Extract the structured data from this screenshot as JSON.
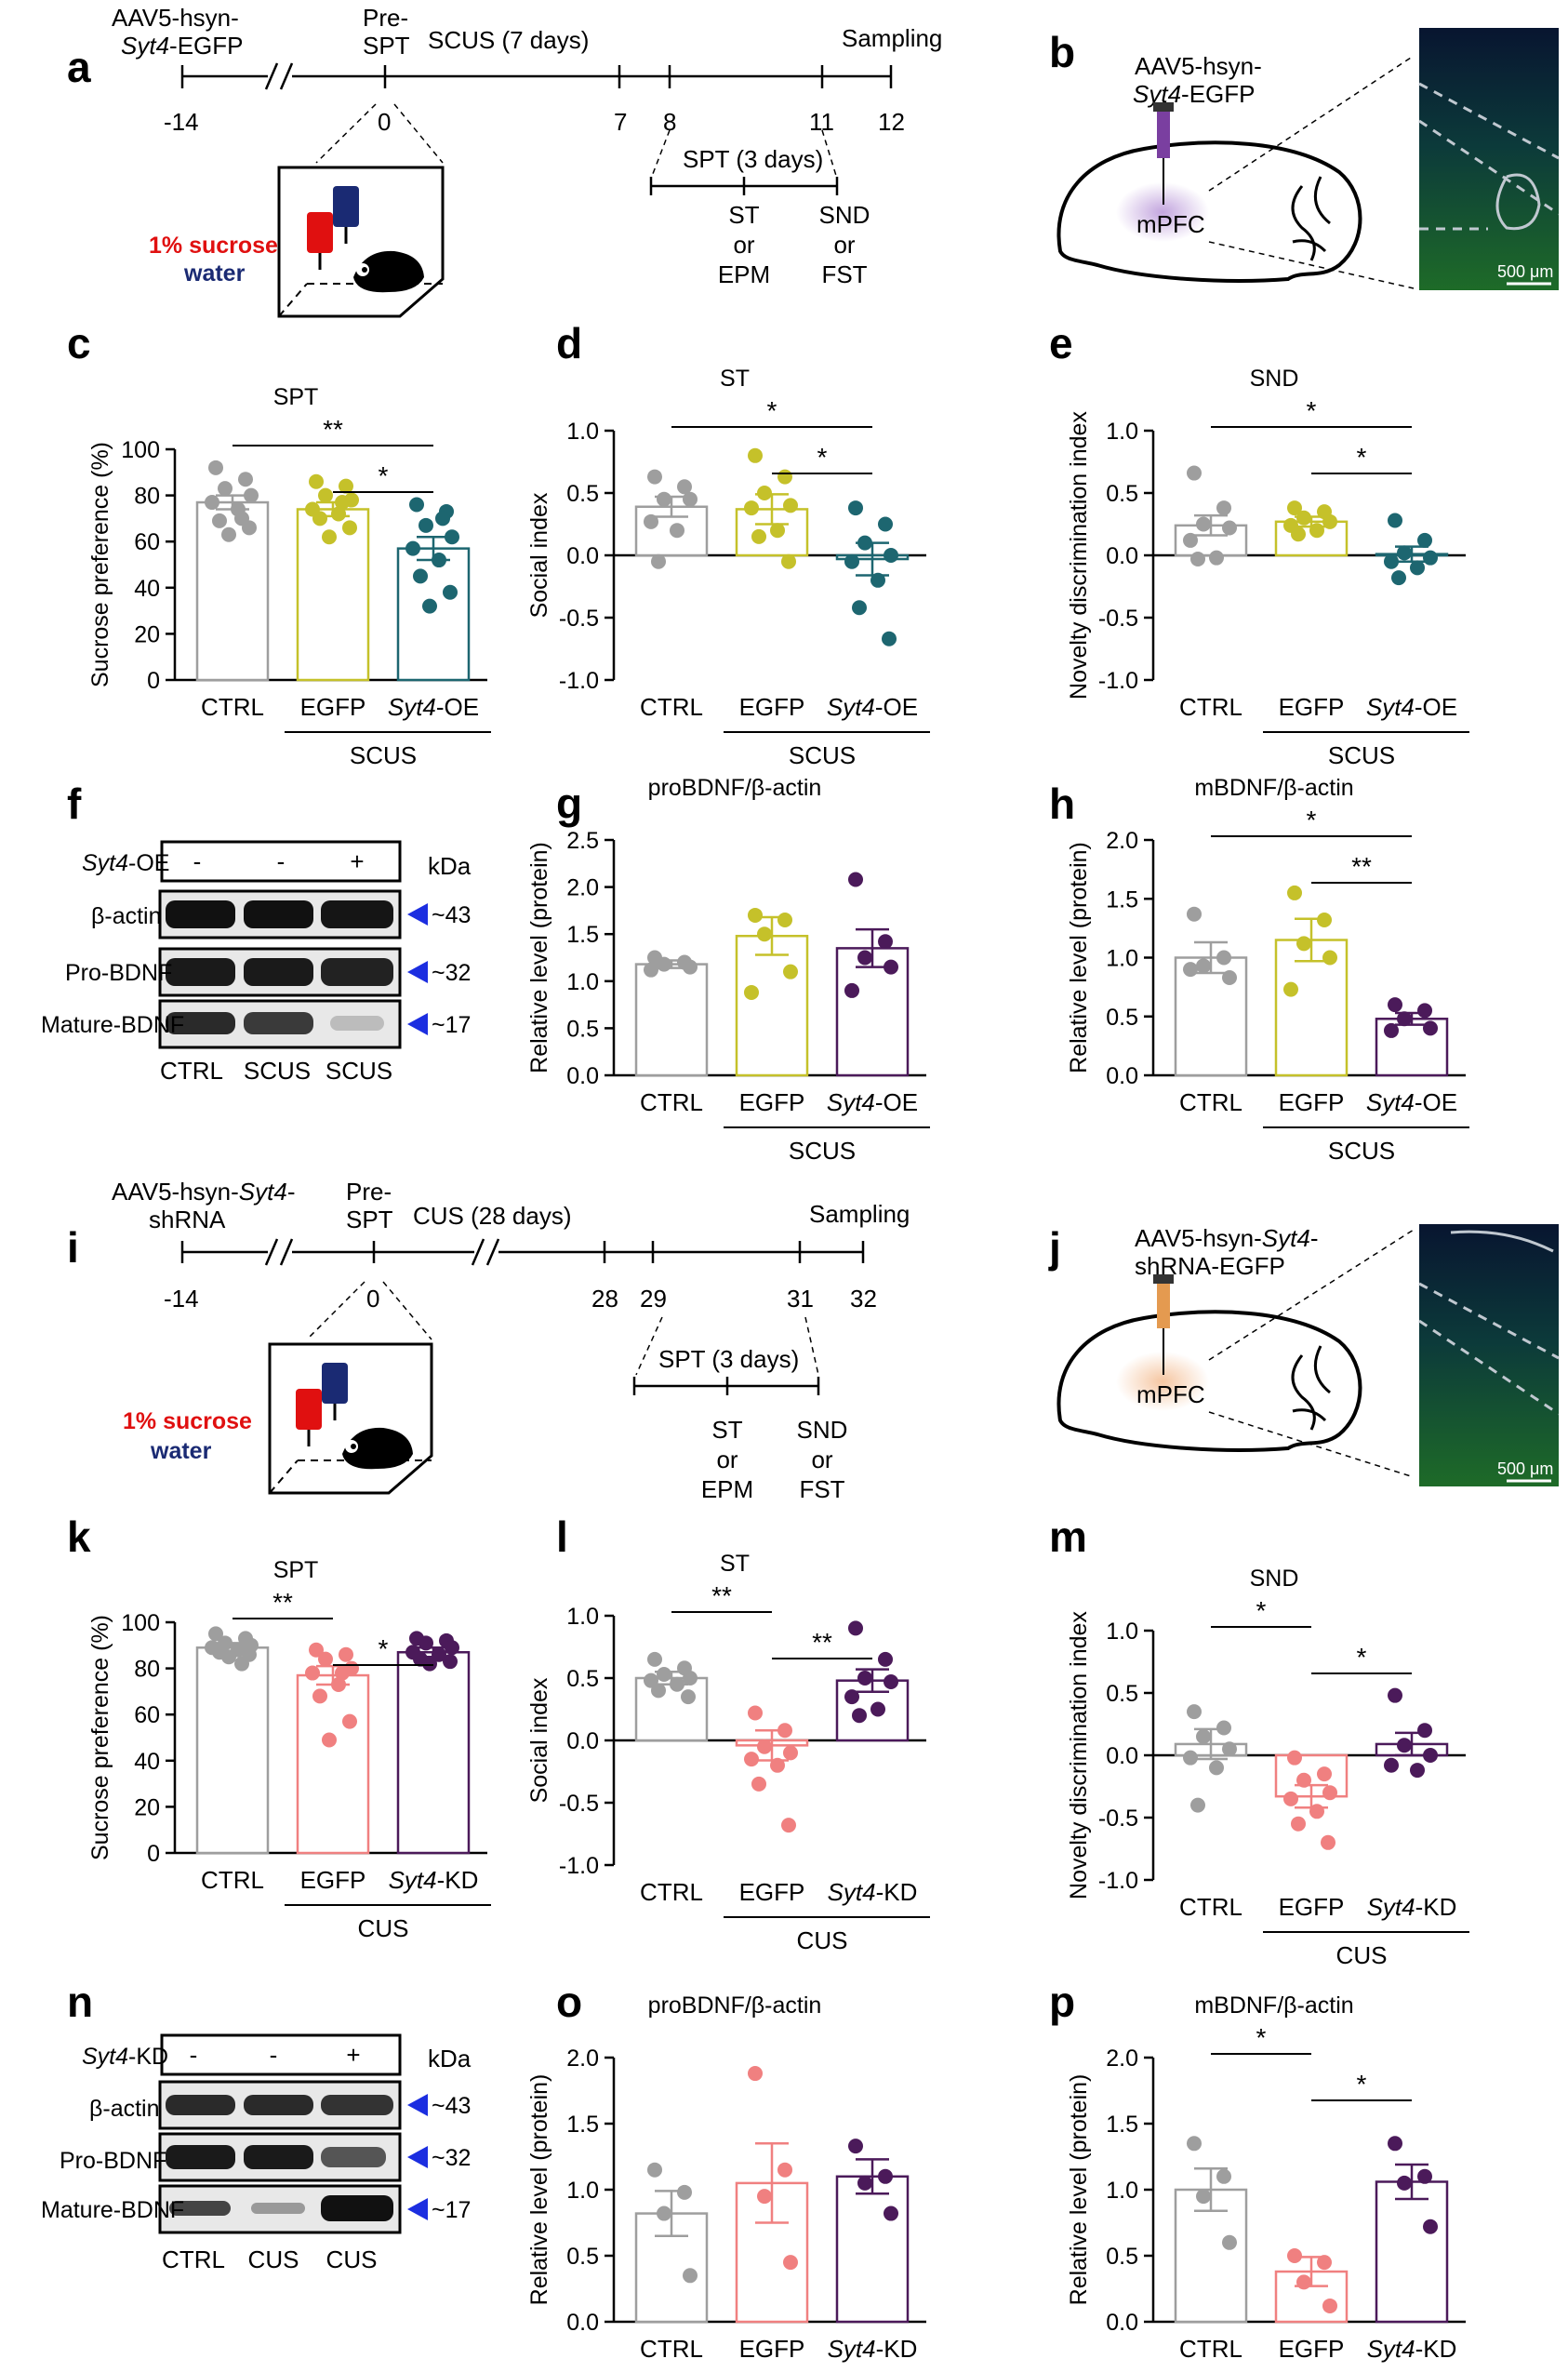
{
  "panel_letters": [
    "a",
    "b",
    "c",
    "d",
    "e",
    "f",
    "g",
    "h",
    "i",
    "j",
    "k",
    "l",
    "m",
    "n",
    "o",
    "p"
  ],
  "colors": {
    "ctrl": "#9e9e9e",
    "egfp_oe": "#c5c12a",
    "oe": "#1d6670",
    "egfp_kd": "#f08080",
    "kd": "#4b1a5a",
    "arrow": "#1c2ee0",
    "sucrose": "#e01010",
    "water": "#1a2a73",
    "virus_oe": "#7a3fa0",
    "virus_kd": "#e49a50",
    "fluor_bg": "#0a1a3a",
    "fluor_green": "#39c23a"
  },
  "panel_a": {
    "virus_line1": "AAV5-hsyn-",
    "virus_line2_italic": "Syt4",
    "virus_line2_rest": "-EGFP",
    "pre_label_1": "Pre-",
    "pre_label_2": "SPT",
    "stress_label": "SCUS (7 days)",
    "sampling_label": "Sampling",
    "ticks": [
      "-14",
      "0",
      "7",
      "8",
      "11",
      "12"
    ],
    "spt_label": "SPT (3 days)",
    "sub1": [
      "ST",
      "or",
      "EPM"
    ],
    "sub2": [
      "SND",
      "or",
      "FST"
    ],
    "sucrose": "1% sucrose",
    "water": "water"
  },
  "panel_b": {
    "virus_line1": "AAV5-hsyn-",
    "virus_line2_italic": "Syt4",
    "virus_line2_rest": "-EGFP",
    "region": "mPFC",
    "scale": "500 μm"
  },
  "panel_i": {
    "virus_line1_a": "AAV5-hsyn-",
    "virus_line1_italic": "Syt4",
    "virus_line1_b": "-",
    "virus_line2": "shRNA",
    "pre_label_1": "Pre-",
    "pre_label_2": "SPT",
    "stress_label": "CUS (28 days)",
    "sampling_label": "Sampling",
    "ticks": [
      "-14",
      "0",
      "28",
      "29",
      "31",
      "32"
    ],
    "spt_label": "SPT (3 days)",
    "sub1": [
      "ST",
      "or",
      "EPM"
    ],
    "sub2": [
      "SND",
      "or",
      "FST"
    ],
    "sucrose": "1% sucrose",
    "water": "water"
  },
  "panel_j": {
    "virus_line1_a": "AAV5-hsyn-",
    "virus_line1_italic": "Syt4",
    "virus_line1_b": "-",
    "virus_line2": "shRNA-EGFP",
    "region": "mPFC",
    "scale": "500 μm"
  },
  "western_f": {
    "row_label_italic": "Syt4",
    "row_label_rest": "-OE",
    "signs": [
      "-",
      "-",
      "+"
    ],
    "kda": "kDa",
    "bands": [
      "β-actin",
      "Pro-BDNF",
      "Mature-BDNF"
    ],
    "sizes": [
      "~43",
      "~32",
      "~17"
    ],
    "lanes": [
      "CTRL",
      "SCUS",
      "SCUS"
    ]
  },
  "western_n": {
    "row_label_italic": "Syt4",
    "row_label_rest": "-KD",
    "signs": [
      "-",
      "-",
      "+"
    ],
    "kda": "kDa",
    "bands": [
      "β-actin",
      "Pro-BDNF",
      "Mature-BDNF"
    ],
    "sizes": [
      "~43",
      "~32",
      "~17"
    ],
    "lanes": [
      "CTRL",
      "CUS",
      "CUS"
    ]
  },
  "chart_data": [
    {
      "panel": "c",
      "type": "bar",
      "title": "SPT",
      "ylabel": "Sucrose preference (%)",
      "ylim": [
        0,
        100
      ],
      "yticks": [
        "0",
        "20",
        "40",
        "60",
        "80",
        "100"
      ],
      "categories": [
        "CTRL",
        "EGFP",
        "Syt4-OE"
      ],
      "group_label": "SCUS",
      "values": [
        77,
        74,
        57
      ],
      "errors": [
        3,
        3,
        5
      ],
      "points": [
        [
          92,
          87,
          83,
          80,
          77,
          74,
          69,
          66,
          63,
          70
        ],
        [
          86,
          84,
          80,
          78,
          74,
          72,
          70,
          66,
          62,
          77
        ],
        [
          76,
          73,
          67,
          62,
          57,
          52,
          45,
          38,
          32,
          70
        ]
      ],
      "significance": [
        {
          "pair": [
            0,
            2
          ],
          "label": "**"
        },
        {
          "pair": [
            1,
            2
          ],
          "label": "*"
        }
      ]
    },
    {
      "panel": "d",
      "type": "bar",
      "title": "ST",
      "ylabel": "Social index",
      "ylim": [
        -1,
        1
      ],
      "yticks": [
        "-1.0",
        "-0.5",
        "0.0",
        "0.5",
        "1.0"
      ],
      "categories": [
        "CTRL",
        "EGFP",
        "Syt4-OE"
      ],
      "group_label": "SCUS",
      "values": [
        0.39,
        0.37,
        -0.03
      ],
      "errors": [
        0.08,
        0.12,
        0.13
      ],
      "points": [
        [
          0.63,
          0.55,
          0.45,
          0.45,
          0.27,
          0.2,
          -0.05
        ],
        [
          0.8,
          0.63,
          0.5,
          0.4,
          0.38,
          0.2,
          0.15,
          -0.05
        ],
        [
          0.38,
          0.25,
          0.1,
          0.0,
          -0.05,
          -0.2,
          -0.42,
          -0.67
        ]
      ],
      "significance": [
        {
          "pair": [
            0,
            2
          ],
          "label": "*"
        },
        {
          "pair": [
            1,
            2
          ],
          "label": "*"
        }
      ]
    },
    {
      "panel": "e",
      "type": "bar",
      "title": "SND",
      "ylabel": "Novelty discrimination index",
      "ylim": [
        -1,
        1
      ],
      "yticks": [
        "-1.0",
        "-0.5",
        "0.0",
        "0.5",
        "1.0"
      ],
      "categories": [
        "CTRL",
        "EGFP",
        "Syt4-OE"
      ],
      "group_label": "SCUS",
      "values": [
        0.24,
        0.27,
        0.01
      ],
      "errors": [
        0.08,
        0.04,
        0.06
      ],
      "points": [
        [
          0.66,
          0.38,
          0.25,
          0.22,
          0.12,
          -0.02,
          -0.03
        ],
        [
          0.38,
          0.35,
          0.3,
          0.27,
          0.24,
          0.2,
          0.17
        ],
        [
          0.28,
          0.12,
          0.02,
          -0.02,
          -0.05,
          -0.1,
          -0.18
        ]
      ],
      "significance": [
        {
          "pair": [
            0,
            2
          ],
          "label": "*"
        },
        {
          "pair": [
            1,
            2
          ],
          "label": "*"
        }
      ]
    },
    {
      "panel": "g",
      "type": "bar",
      "title": "proBDNF/β-actin",
      "ylabel": "Relative level (protein)",
      "ylim": [
        0,
        2.5
      ],
      "yticks": [
        "0.0",
        "0.5",
        "1.0",
        "1.5",
        "2.0",
        "2.5"
      ],
      "categories": [
        "CTRL",
        "EGFP",
        "Syt4-OE"
      ],
      "group_label": "SCUS",
      "values": [
        1.18,
        1.48,
        1.35
      ],
      "errors": [
        0.04,
        0.2,
        0.2
      ],
      "points": [
        [
          1.25,
          1.2,
          1.18,
          1.15,
          1.12
        ],
        [
          1.7,
          1.65,
          1.5,
          1.1,
          0.88
        ],
        [
          2.08,
          1.42,
          1.25,
          1.15,
          0.9
        ]
      ],
      "significance": []
    },
    {
      "panel": "h",
      "type": "bar",
      "title": "mBDNF/β-actin",
      "ylabel": "Relative level (protein)",
      "ylim": [
        0,
        2
      ],
      "yticks": [
        "0.0",
        "0.5",
        "1.0",
        "1.5",
        "2.0"
      ],
      "categories": [
        "CTRL",
        "EGFP",
        "Syt4-OE"
      ],
      "group_label": "SCUS",
      "values": [
        1.0,
        1.15,
        0.48
      ],
      "errors": [
        0.13,
        0.18,
        0.05
      ],
      "points": [
        [
          1.37,
          1.0,
          0.93,
          0.83,
          0.9
        ],
        [
          1.55,
          1.32,
          1.12,
          1.0,
          0.73
        ],
        [
          0.6,
          0.55,
          0.48,
          0.4,
          0.38
        ]
      ],
      "significance": [
        {
          "pair": [
            0,
            2
          ],
          "label": "*"
        },
        {
          "pair": [
            1,
            2
          ],
          "label": "**"
        }
      ]
    },
    {
      "panel": "k",
      "type": "bar",
      "title": "SPT",
      "ylabel": "Sucrose preference (%)",
      "ylim": [
        0,
        100
      ],
      "yticks": [
        "0",
        "20",
        "40",
        "60",
        "80",
        "100"
      ],
      "categories": [
        "CTRL",
        "EGFP",
        "Syt4-KD"
      ],
      "group_label": "CUS",
      "values": [
        89,
        77,
        87
      ],
      "errors": [
        2,
        4,
        2
      ],
      "points": [
        [
          95,
          93,
          91,
          90,
          89,
          88,
          87,
          86,
          85,
          82
        ],
        [
          88,
          86,
          84,
          80,
          78,
          73,
          68,
          57,
          49,
          78
        ],
        [
          93,
          92,
          91,
          89,
          87,
          86,
          84,
          83,
          82
        ]
      ],
      "significance": [
        {
          "pair": [
            0,
            1
          ],
          "label": "**"
        },
        {
          "pair": [
            1,
            2
          ],
          "label": "*"
        }
      ]
    },
    {
      "panel": "l",
      "type": "bar",
      "title": "ST",
      "ylabel": "Social index",
      "ylim": [
        -1,
        1
      ],
      "yticks": [
        "-1.0",
        "-0.5",
        "0.0",
        "0.5",
        "1.0"
      ],
      "categories": [
        "CTRL",
        "EGFP",
        "Syt4-KD"
      ],
      "group_label": "CUS",
      "values": [
        0.5,
        -0.04,
        0.48
      ],
      "errors": [
        0.05,
        0.12,
        0.09
      ],
      "points": [
        [
          0.65,
          0.58,
          0.53,
          0.5,
          0.48,
          0.45,
          0.4,
          0.35
        ],
        [
          0.22,
          0.08,
          -0.05,
          -0.1,
          -0.15,
          -0.2,
          -0.35,
          -0.68
        ],
        [
          0.9,
          0.65,
          0.5,
          0.47,
          0.35,
          0.25,
          0.2
        ]
      ],
      "significance": [
        {
          "pair": [
            0,
            1
          ],
          "label": "**"
        },
        {
          "pair": [
            1,
            2
          ],
          "label": "**"
        }
      ]
    },
    {
      "panel": "m",
      "type": "bar",
      "title": "SND",
      "ylabel": "Novelty discrimination index",
      "ylim": [
        -1,
        1
      ],
      "yticks": [
        "-1.0",
        "-0.5",
        "0.0",
        "0.5",
        "1.0"
      ],
      "categories": [
        "CTRL",
        "EGFP",
        "Syt4-KD"
      ],
      "group_label": "CUS",
      "values": [
        0.09,
        -0.33,
        0.09
      ],
      "errors": [
        0.12,
        0.09,
        0.09
      ],
      "points": [
        [
          0.35,
          0.22,
          0.15,
          0.05,
          -0.02,
          -0.1,
          -0.4
        ],
        [
          -0.02,
          -0.15,
          -0.2,
          -0.3,
          -0.35,
          -0.45,
          -0.55,
          -0.7
        ],
        [
          0.48,
          0.2,
          0.08,
          0.0,
          -0.08,
          -0.12
        ]
      ],
      "significance": [
        {
          "pair": [
            0,
            1
          ],
          "label": "*"
        },
        {
          "pair": [
            1,
            2
          ],
          "label": "*"
        }
      ]
    },
    {
      "panel": "o",
      "type": "bar",
      "title": "proBDNF/β-actin",
      "ylabel": "Relative level (protein)",
      "ylim": [
        0,
        2
      ],
      "yticks": [
        "0.0",
        "0.5",
        "1.0",
        "1.5",
        "2.0"
      ],
      "categories": [
        "CTRL",
        "EGFP",
        "Syt4-KD"
      ],
      "group_label": "CUS",
      "values": [
        0.82,
        1.05,
        1.1
      ],
      "errors": [
        0.17,
        0.3,
        0.13
      ],
      "points": [
        [
          1.15,
          0.98,
          0.82,
          0.35
        ],
        [
          1.88,
          1.15,
          0.95,
          0.45
        ],
        [
          1.33,
          1.1,
          1.05,
          0.82
        ]
      ],
      "significance": []
    },
    {
      "panel": "p",
      "type": "bar",
      "title": "mBDNF/β-actin",
      "ylabel": "Relative level (protein)",
      "ylim": [
        0,
        2
      ],
      "yticks": [
        "0.0",
        "0.5",
        "1.0",
        "1.5",
        "2.0"
      ],
      "categories": [
        "CTRL",
        "EGFP",
        "Syt4-KD"
      ],
      "group_label": "CUS",
      "values": [
        1.0,
        0.38,
        1.06
      ],
      "errors": [
        0.16,
        0.11,
        0.13
      ],
      "points": [
        [
          1.35,
          1.1,
          0.95,
          0.6
        ],
        [
          0.5,
          0.45,
          0.3,
          0.12
        ],
        [
          1.35,
          1.1,
          1.05,
          0.72
        ]
      ],
      "significance": [
        {
          "pair": [
            0,
            1
          ],
          "label": "*"
        },
        {
          "pair": [
            1,
            2
          ],
          "label": "*"
        }
      ]
    }
  ]
}
